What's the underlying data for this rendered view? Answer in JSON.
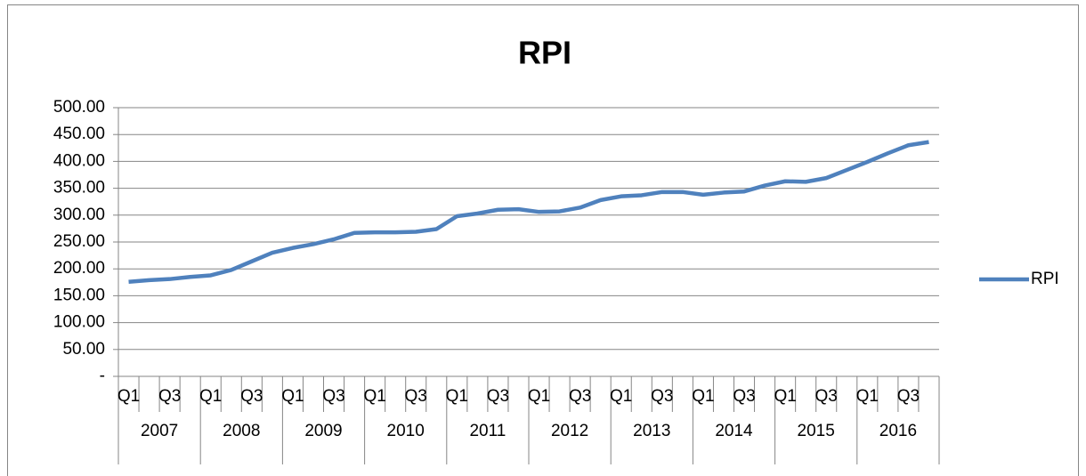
{
  "chart_data": {
    "type": "line",
    "title": "RPI",
    "categories": [
      "Q1",
      null,
      "Q3",
      null,
      "Q1",
      null,
      "Q3",
      null,
      "Q1",
      null,
      "Q3",
      null,
      "Q1",
      null,
      "Q3",
      null,
      "Q1",
      null,
      "Q3",
      null,
      "Q1",
      null,
      "Q3",
      null,
      "Q1",
      null,
      "Q3",
      null,
      "Q1",
      null,
      "Q3",
      null,
      "Q1",
      null,
      "Q3",
      null,
      "Q1",
      null,
      "Q3",
      null
    ],
    "category_groups": [
      "2007",
      "2008",
      "2009",
      "2010",
      "2011",
      "2012",
      "2013",
      "2014",
      "2015",
      "2016"
    ],
    "series": [
      {
        "name": "RPI",
        "color": "#4f81bd",
        "values": [
          176,
          179,
          181,
          185,
          188,
          198,
          214,
          230,
          239,
          246,
          255,
          267,
          268,
          268,
          269,
          274,
          298,
          303,
          310,
          311,
          306,
          307,
          314,
          328,
          335,
          337,
          343,
          343,
          338,
          342,
          344,
          355,
          363,
          362,
          369,
          384,
          399,
          415,
          430,
          436
        ]
      }
    ],
    "ylim": [
      0,
      500
    ],
    "yticks": [
      {
        "value": 0,
        "label": "-"
      },
      {
        "value": 50,
        "label": "50.00"
      },
      {
        "value": 100,
        "label": "100.00"
      },
      {
        "value": 150,
        "label": "150.00"
      },
      {
        "value": 200,
        "label": "200.00"
      },
      {
        "value": 250,
        "label": "250.00"
      },
      {
        "value": 300,
        "label": "300.00"
      },
      {
        "value": 350,
        "label": "350.00"
      },
      {
        "value": 400,
        "label": "400.00"
      },
      {
        "value": 450,
        "label": "450.00"
      },
      {
        "value": 500,
        "label": "500.00"
      }
    ],
    "grid": true,
    "legend": "right"
  }
}
